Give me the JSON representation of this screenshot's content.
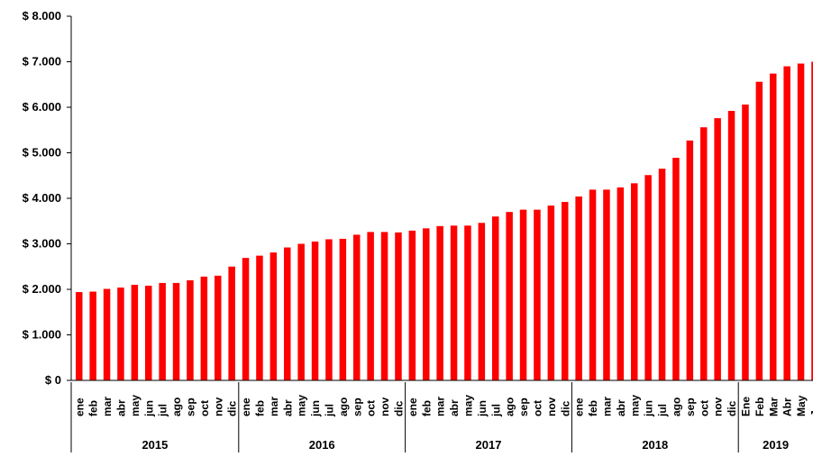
{
  "chart_data": {
    "type": "bar",
    "title": "",
    "xlabel": "",
    "ylabel": "",
    "ylim": [
      0,
      8000
    ],
    "y_ticks": [
      "$ 0",
      "$ 1.000",
      "$ 2.000",
      "$ 3.000",
      "$ 4.000",
      "$ 5.000",
      "$ 6.000",
      "$ 7.000",
      "$ 8.000"
    ],
    "y_tick_values": [
      0,
      1000,
      2000,
      3000,
      4000,
      5000,
      6000,
      7000,
      8000
    ],
    "grid": false,
    "legend": "none",
    "bar_color": "#ff0000",
    "categories": [
      "ene",
      "feb",
      "mar",
      "abr",
      "may",
      "jun",
      "jul",
      "ago",
      "sep",
      "oct",
      "nov",
      "dic",
      "ene",
      "feb",
      "mar",
      "abr",
      "may",
      "jun",
      "jul",
      "ago",
      "sep",
      "oct",
      "nov",
      "dic",
      "ene",
      "feb",
      "mar",
      "abr",
      "may",
      "jun",
      "jul",
      "ago",
      "sep",
      "oct",
      "nov",
      "dic",
      "ene",
      "feb",
      "mar",
      "abr",
      "may",
      "jun",
      "jul",
      "ago",
      "sep",
      "oct",
      "nov",
      "dic",
      "Ene",
      "Feb",
      "Mar",
      "Abr",
      "May",
      "Jun"
    ],
    "groups": [
      {
        "label": "2015",
        "count": 12
      },
      {
        "label": "2016",
        "count": 12
      },
      {
        "label": "2017",
        "count": 12
      },
      {
        "label": "2018",
        "count": 12
      },
      {
        "label": "2019",
        "count": 6
      }
    ],
    "values": [
      1940,
      1950,
      2010,
      2040,
      2100,
      2080,
      2140,
      2140,
      2200,
      2280,
      2300,
      2500,
      2690,
      2740,
      2810,
      2920,
      3000,
      3050,
      3100,
      3110,
      3200,
      3260,
      3260,
      3250,
      3290,
      3340,
      3390,
      3400,
      3400,
      3460,
      3600,
      3700,
      3750,
      3750,
      3840,
      3920,
      4040,
      4190,
      4190,
      4240,
      4330,
      4510,
      4650,
      4890,
      5270,
      5560,
      5760,
      5920,
      6060,
      6560,
      6740,
      6900,
      6960,
      7000
    ]
  }
}
